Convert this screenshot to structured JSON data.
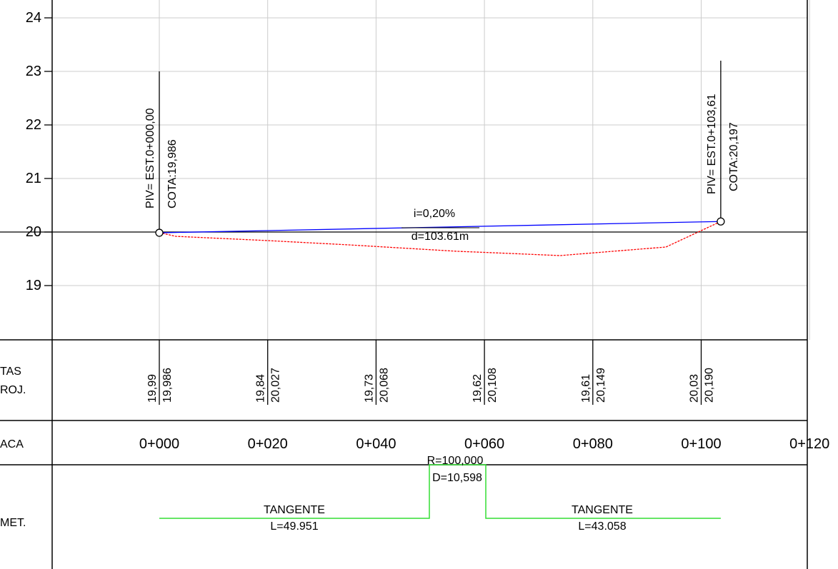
{
  "elevation_axis": {
    "ticks": [
      {
        "label": "24",
        "value": 24
      },
      {
        "label": "23",
        "value": 23
      },
      {
        "label": "22",
        "value": 22
      },
      {
        "label": "21",
        "value": 21
      },
      {
        "label": "20",
        "value": 20
      },
      {
        "label": "19",
        "value": 19
      }
    ]
  },
  "pivs": [
    {
      "station_label": "PIV= EST.0+000,00",
      "cota_label": "COTA:19,986",
      "station_m": 0,
      "elevation": 19.986
    },
    {
      "station_label": "PIV= EST.0+103,61",
      "cota_label": "COTA:20,197",
      "station_m": 103.61,
      "elevation": 20.197
    }
  ],
  "grade": {
    "slope_label": "i=0,20%",
    "length_label": "d=103.61m"
  },
  "terrain": [
    {
      "station_m": 0,
      "elevation": 19.99
    },
    {
      "station_m": 3,
      "elevation": 19.92
    },
    {
      "station_m": 20,
      "elevation": 19.84
    },
    {
      "station_m": 35,
      "elevation": 19.76
    },
    {
      "station_m": 40,
      "elevation": 19.73
    },
    {
      "station_m": 55,
      "elevation": 19.64
    },
    {
      "station_m": 60,
      "elevation": 19.62
    },
    {
      "station_m": 74,
      "elevation": 19.56
    },
    {
      "station_m": 80,
      "elevation": 19.61
    },
    {
      "station_m": 93.5,
      "elevation": 19.72
    },
    {
      "station_m": 103.61,
      "elevation": 20.197
    }
  ],
  "band_labels": {
    "cotas_line1": "TAS",
    "cotas_line2": "ROJ.",
    "estaca": "ACA",
    "geomet": "MET."
  },
  "cotas": [
    {
      "terrain": "19,99",
      "project": "19,986"
    },
    {
      "terrain": "19,84",
      "project": "20,027"
    },
    {
      "terrain": "19,73",
      "project": "20,068"
    },
    {
      "terrain": "19,62",
      "project": "20,108"
    },
    {
      "terrain": "19,61",
      "project": "20,149"
    },
    {
      "terrain": "20,03",
      "project": "20,190"
    }
  ],
  "stations": [
    "0+000",
    "0+020",
    "0+040",
    "0+060",
    "0+080",
    "0+100",
    "0+120"
  ],
  "geometry": {
    "tangent1": {
      "label": "TANGENTE",
      "length_label": "L=49.951"
    },
    "curve": {
      "radius_label": "R=100,000",
      "development_label": "D=10,598"
    },
    "tangent2": {
      "label": "TANGENTE",
      "length_label": "L=43.058"
    }
  },
  "colors": {
    "grade_line": "#0000ff",
    "terrain_line": "#ff0000",
    "geometry_line": "#33dd33",
    "grid": "#cccccc",
    "border": "#000000"
  }
}
